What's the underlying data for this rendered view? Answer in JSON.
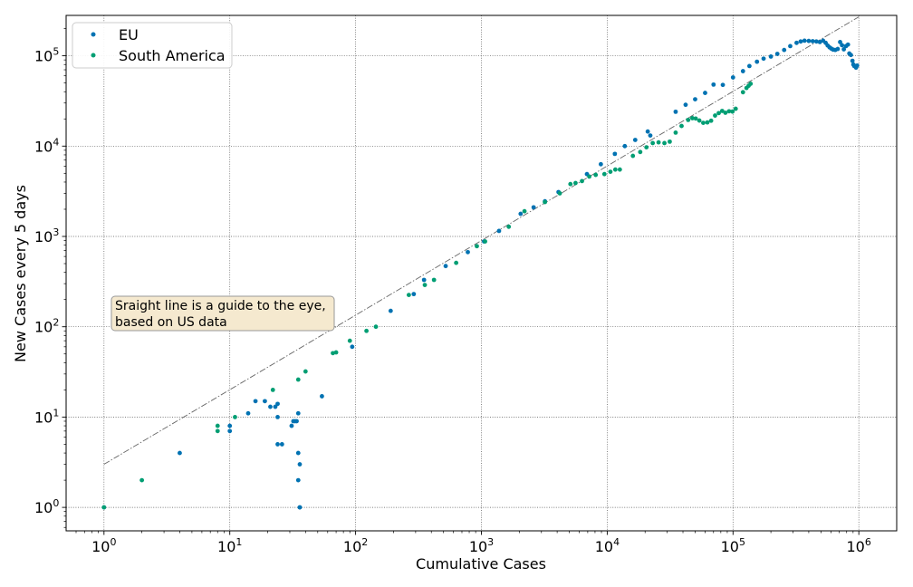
{
  "chart_data": {
    "type": "scatter",
    "xscale": "log",
    "yscale": "log",
    "xlim": [
      0.5,
      2000000
    ],
    "ylim": [
      0.55,
      280000
    ],
    "xlabel": "Cumulative Cases",
    "ylabel": "New Cases every 5 days",
    "grid": true,
    "legend_position": "top-left",
    "xticks": [
      {
        "value": 1,
        "base": "10",
        "exp": "0"
      },
      {
        "value": 10,
        "base": "10",
        "exp": "1"
      },
      {
        "value": 100,
        "base": "10",
        "exp": "2"
      },
      {
        "value": 1000,
        "base": "10",
        "exp": "3"
      },
      {
        "value": 10000,
        "base": "10",
        "exp": "4"
      },
      {
        "value": 100000,
        "base": "10",
        "exp": "5"
      },
      {
        "value": 1000000,
        "base": "10",
        "exp": "6"
      }
    ],
    "yticks": [
      {
        "value": 1,
        "base": "10",
        "exp": "0"
      },
      {
        "value": 10,
        "base": "10",
        "exp": "1"
      },
      {
        "value": 100,
        "base": "10",
        "exp": "2"
      },
      {
        "value": 1000,
        "base": "10",
        "exp": "3"
      },
      {
        "value": 10000,
        "base": "10",
        "exp": "4"
      },
      {
        "value": 100000,
        "base": "10",
        "exp": "5"
      }
    ],
    "series": [
      {
        "name": "EU",
        "color": "#0072b2",
        "points": [
          [
            1,
            1
          ],
          [
            4,
            4
          ],
          [
            10,
            7
          ],
          [
            10,
            8
          ],
          [
            14,
            11
          ],
          [
            16,
            15
          ],
          [
            19,
            15
          ],
          [
            21,
            13
          ],
          [
            23,
            13
          ],
          [
            24,
            14
          ],
          [
            24,
            10
          ],
          [
            24,
            5
          ],
          [
            26,
            5
          ],
          [
            31,
            8
          ],
          [
            32,
            9
          ],
          [
            33,
            9
          ],
          [
            34,
            9
          ],
          [
            35,
            11
          ],
          [
            35,
            4
          ],
          [
            35,
            2
          ],
          [
            36,
            3
          ],
          [
            36,
            1
          ],
          [
            36,
            1
          ],
          [
            54,
            17
          ],
          [
            94,
            60
          ],
          [
            190,
            150
          ],
          [
            290,
            230
          ],
          [
            350,
            330
          ],
          [
            520,
            470
          ],
          [
            780,
            670
          ],
          [
            1050,
            880
          ],
          [
            1380,
            1150
          ],
          [
            2050,
            1780
          ],
          [
            2600,
            2100
          ],
          [
            3200,
            2450
          ],
          [
            4100,
            3100
          ],
          [
            6900,
            4900
          ],
          [
            8900,
            6300
          ],
          [
            11500,
            8200
          ],
          [
            13800,
            10000
          ],
          [
            16700,
            11700
          ],
          [
            21000,
            14500
          ],
          [
            22000,
            13100
          ],
          [
            35000,
            24000
          ],
          [
            42000,
            28700
          ],
          [
            50000,
            33000
          ],
          [
            60000,
            38800
          ],
          [
            70000,
            48000
          ],
          [
            83000,
            47600
          ],
          [
            100000,
            57600
          ],
          [
            120000,
            67600
          ],
          [
            135000,
            77000
          ],
          [
            155000,
            86000
          ],
          [
            175000,
            93000
          ],
          [
            200000,
            98000
          ],
          [
            225000,
            105000
          ],
          [
            255000,
            116000
          ],
          [
            285000,
            128000
          ],
          [
            320000,
            139000
          ],
          [
            345000,
            144000
          ],
          [
            370000,
            147000
          ],
          [
            400000,
            146000
          ],
          [
            430000,
            145000
          ],
          [
            460000,
            144000
          ],
          [
            490000,
            142000
          ],
          [
            520000,
            147000
          ],
          [
            545000,
            139000
          ],
          [
            565000,
            130000
          ],
          [
            585000,
            124000
          ],
          [
            605000,
            120000
          ],
          [
            625000,
            117000
          ],
          [
            650000,
            116000
          ],
          [
            680000,
            119000
          ],
          [
            710000,
            142000
          ],
          [
            735000,
            131000
          ],
          [
            760000,
            118000
          ],
          [
            790000,
            128000
          ],
          [
            820000,
            133000
          ],
          [
            840000,
            106000
          ],
          [
            865000,
            102000
          ],
          [
            890000,
            88000
          ],
          [
            905000,
            80000
          ],
          [
            920000,
            77000
          ],
          [
            950000,
            74000
          ],
          [
            970000,
            78000
          ]
        ]
      },
      {
        "name": "South America",
        "color": "#009e73",
        "points": [
          [
            1,
            1
          ],
          [
            2,
            2
          ],
          [
            8,
            7
          ],
          [
            8,
            8
          ],
          [
            11,
            10
          ],
          [
            22,
            20
          ],
          [
            35,
            26
          ],
          [
            40,
            32
          ],
          [
            66,
            51
          ],
          [
            70,
            52
          ],
          [
            90,
            70
          ],
          [
            122,
            90
          ],
          [
            145,
            100
          ],
          [
            265,
            225
          ],
          [
            355,
            290
          ],
          [
            420,
            330
          ],
          [
            630,
            510
          ],
          [
            920,
            780
          ],
          [
            1070,
            880
          ],
          [
            1650,
            1280
          ],
          [
            2200,
            1900
          ],
          [
            3200,
            2400
          ],
          [
            4200,
            3000
          ],
          [
            5100,
            3800
          ],
          [
            5600,
            3900
          ],
          [
            6300,
            4100
          ],
          [
            7200,
            4600
          ],
          [
            8100,
            4800
          ],
          [
            9500,
            4900
          ],
          [
            10600,
            5200
          ],
          [
            11600,
            5500
          ],
          [
            12600,
            5500
          ],
          [
            16000,
            7800
          ],
          [
            18300,
            8600
          ],
          [
            20500,
            9700
          ],
          [
            23000,
            10800
          ],
          [
            25600,
            11000
          ],
          [
            28500,
            10800
          ],
          [
            31400,
            11200
          ],
          [
            35000,
            14100
          ],
          [
            39000,
            16700
          ],
          [
            44000,
            19500
          ],
          [
            47500,
            20400
          ],
          [
            50500,
            20200
          ],
          [
            54000,
            19200
          ],
          [
            58000,
            18100
          ],
          [
            62500,
            18300
          ],
          [
            67000,
            19100
          ],
          [
            72000,
            21800
          ],
          [
            77000,
            23200
          ],
          [
            82000,
            24500
          ],
          [
            87000,
            23400
          ],
          [
            93000,
            24300
          ],
          [
            99000,
            24100
          ],
          [
            105000,
            25900
          ],
          [
            120000,
            39500
          ],
          [
            128000,
            44000
          ],
          [
            133000,
            46500
          ],
          [
            138000,
            49000
          ]
        ]
      }
    ],
    "guide_line": {
      "from": [
        1,
        3
      ],
      "to": [
        1000000,
        270000
      ]
    },
    "annotation": {
      "line1": "Sraight line is a guide to the eye,",
      "line2": "based on US data"
    }
  }
}
